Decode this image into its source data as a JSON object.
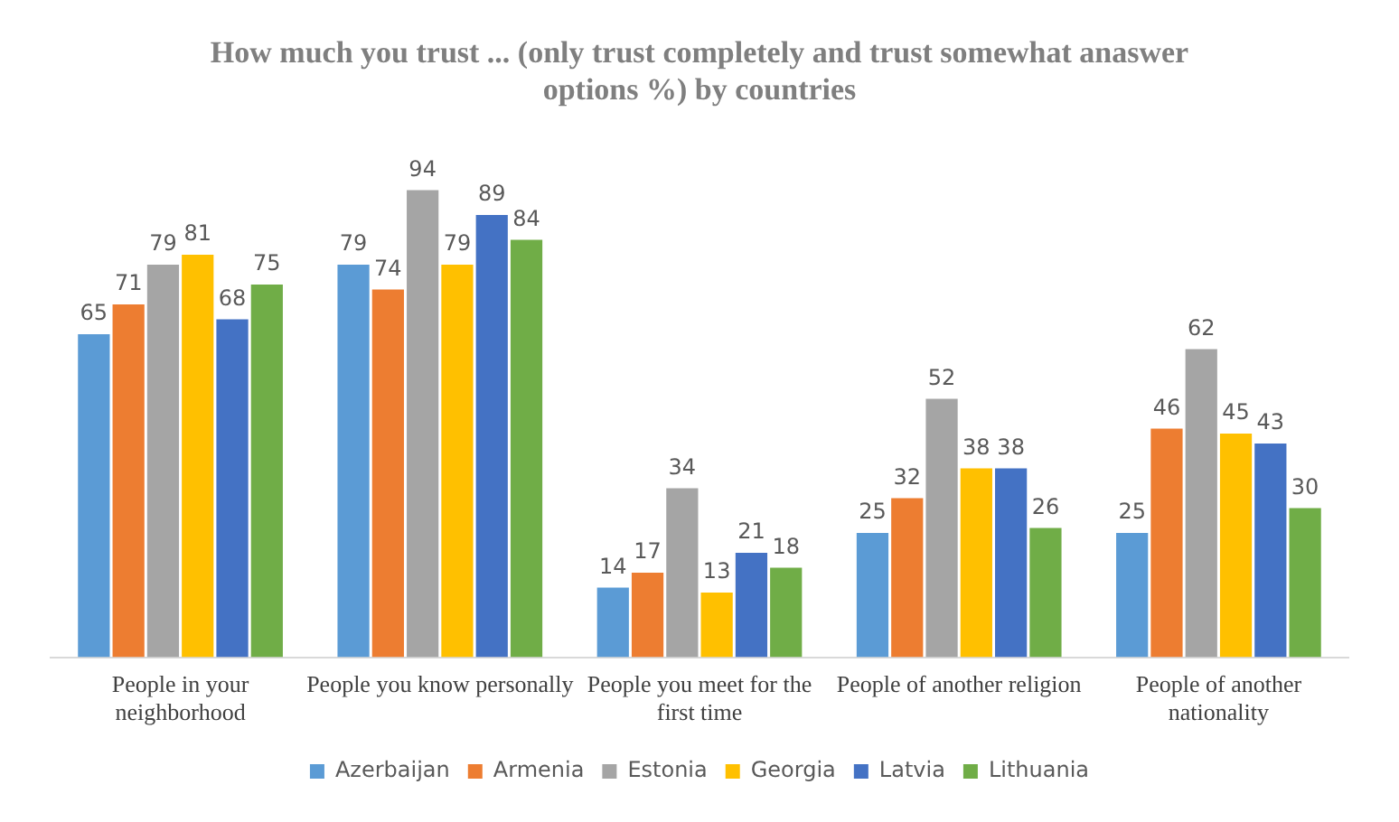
{
  "chart_data": {
    "type": "bar",
    "title": "How much you trust ... (only trust completely and trust somewhat anaswer options %) by countries",
    "categories": [
      "People in your neighborhood",
      "People you know personally",
      "People you meet for the first time",
      "People of another religion",
      "People of another nationality"
    ],
    "series": [
      {
        "name": "Azerbaijan",
        "color": "#5b9bd5",
        "values": [
          65,
          79,
          14,
          25,
          25
        ]
      },
      {
        "name": "Armenia",
        "color": "#ed7d31",
        "values": [
          71,
          74,
          17,
          32,
          46
        ]
      },
      {
        "name": "Estonia",
        "color": "#a5a5a5",
        "values": [
          79,
          94,
          34,
          52,
          62
        ]
      },
      {
        "name": "Georgia",
        "color": "#ffc000",
        "values": [
          81,
          79,
          13,
          38,
          45
        ]
      },
      {
        "name": "Latvia",
        "color": "#4472c4",
        "values": [
          68,
          89,
          21,
          38,
          43
        ]
      },
      {
        "name": "Lithuania",
        "color": "#70ad47",
        "values": [
          75,
          84,
          18,
          26,
          30
        ]
      }
    ],
    "data_labels": true,
    "grid": false,
    "legend": "bottom"
  }
}
